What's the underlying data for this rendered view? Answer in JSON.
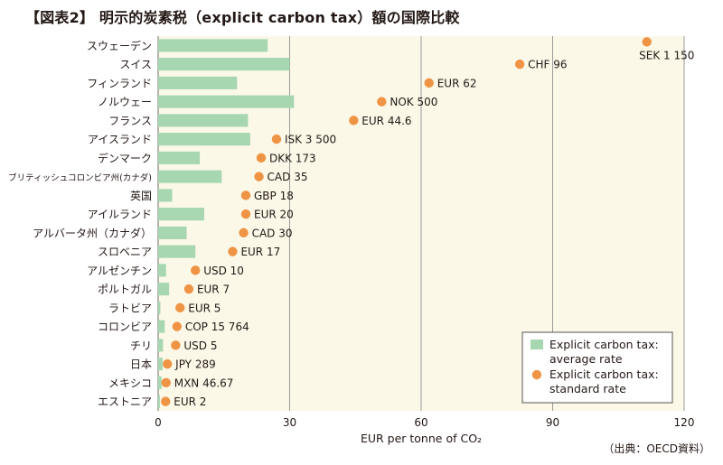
{
  "title": "【図表2】 明示的炭素税（explicit carbon tax）額の国際比較",
  "source": "（出典：OECD資料）",
  "chart_data": {
    "type": "bar",
    "categories": [
      "スウェーデン",
      "スイス",
      "フィンランド",
      "ノルウェー",
      "フランス",
      "アイスランド",
      "デンマーク",
      "ブリティッシュコロンビア州(カナダ)",
      "英国",
      "アイルランド",
      "アルバータ州（カナダ）",
      "スロベニア",
      "アルゼンチン",
      "ポルトガル",
      "ラトビア",
      "コロンビア",
      "チリ",
      "日本",
      "メキシコ",
      "エストニア"
    ],
    "series": [
      {
        "name": "Explicit carbon tax: average rate",
        "type": "bar",
        "values": [
          25,
          30,
          18,
          31,
          20.5,
          21,
          9.5,
          14.5,
          3.2,
          10.5,
          6.5,
          8.5,
          1.8,
          2.5,
          0.5,
          1.5,
          1.1,
          1.0,
          0.8,
          0.4
        ]
      },
      {
        "name": "Explicit carbon tax: standard rate",
        "type": "scatter",
        "values": [
          111.5,
          82.5,
          61.8,
          51,
          44.6,
          27,
          23.5,
          23,
          20,
          20,
          19.5,
          17,
          8.5,
          7,
          5,
          4.3,
          4,
          2.1,
          1.8,
          1.7
        ],
        "labels": [
          "SEK 1 150",
          "CHF 96",
          "EUR 62",
          "NOK 500",
          "EUR 44.6",
          "ISK 3 500",
          "DKK 173",
          "CAD 35",
          "GBP 18",
          "EUR 20",
          "CAD 30",
          "EUR 17",
          "USD 10",
          "EUR 7",
          "EUR 5",
          "COP 15 764",
          "USD 5",
          "JPY 289",
          "MXN 46.67",
          "EUR 2"
        ]
      }
    ],
    "xlabel": "EUR per tonne of CO₂",
    "xlim": [
      0,
      120
    ],
    "xticks": [
      0,
      30,
      60,
      90,
      120
    ],
    "grid": true,
    "legend_position": "bottom-right",
    "colors": {
      "bar": "#a7d7b1",
      "dot": "#ef9444",
      "plot_bg": "#fbf8e8",
      "grid": "#9a9a9a"
    }
  }
}
